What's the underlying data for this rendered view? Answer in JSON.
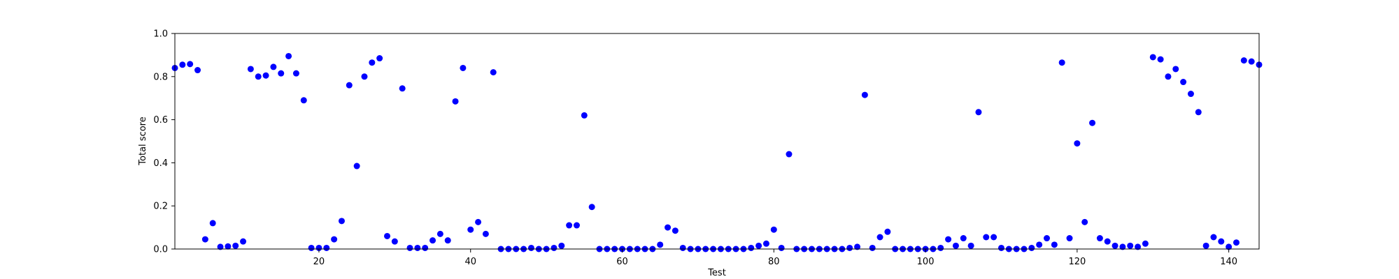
{
  "chart_data": {
    "type": "scatter",
    "title": "",
    "xlabel": "Test",
    "ylabel": "Total score",
    "xlim": [
      1,
      144
    ],
    "ylim": [
      0.0,
      1.0
    ],
    "grid": false,
    "marker_color": "#0000ff",
    "axis_color": "#000000",
    "xticks": [
      20,
      40,
      60,
      80,
      100,
      120,
      140
    ],
    "yticks": [
      "0.0",
      "0.2",
      "0.4",
      "0.6",
      "0.8",
      "1.0"
    ],
    "series": [
      {
        "x": [
          1,
          2,
          3,
          4,
          5,
          6,
          7,
          8,
          9,
          10,
          11,
          12,
          13,
          14,
          15,
          16,
          17,
          18,
          19,
          20,
          21,
          22,
          23,
          24,
          25,
          26,
          27,
          28,
          29,
          30,
          31,
          32,
          33,
          34,
          35,
          36,
          37,
          38,
          39,
          40,
          41,
          42,
          43,
          44,
          45,
          46,
          47,
          48,
          49,
          50,
          51,
          52,
          53,
          54,
          55,
          56,
          57,
          58,
          59,
          60,
          61,
          62,
          63,
          64,
          65,
          66,
          67,
          68,
          69,
          70,
          71,
          72,
          73,
          74,
          75,
          76,
          77,
          78,
          79,
          80,
          81,
          82,
          83,
          84,
          85,
          86,
          87,
          88,
          89,
          90,
          91,
          92,
          93,
          94,
          95,
          96,
          97,
          98,
          99,
          100,
          101,
          102,
          103,
          104,
          105,
          106,
          107,
          108,
          109,
          110,
          111,
          112,
          113,
          114,
          115,
          116,
          117,
          118,
          119,
          120,
          121,
          122,
          123,
          124,
          125,
          126,
          127,
          128,
          129,
          130,
          131,
          132,
          133,
          134,
          135,
          136,
          137,
          138,
          139,
          140,
          141,
          142,
          143,
          144
        ],
        "y": [
          0.84,
          0.855,
          0.858,
          0.83,
          0.045,
          0.12,
          0.01,
          0.012,
          0.015,
          0.035,
          0.835,
          0.8,
          0.805,
          0.845,
          0.815,
          0.895,
          0.815,
          0.69,
          0.005,
          0.005,
          0.005,
          0.045,
          0.13,
          0.76,
          0.385,
          0.8,
          0.865,
          0.885,
          0.06,
          0.035,
          0.745,
          0.005,
          0.005,
          0.005,
          0.04,
          0.07,
          0.04,
          0.685,
          0.84,
          0.09,
          0.125,
          0.07,
          0.82,
          0.0,
          0.0,
          0.0,
          0.0,
          0.005,
          0.0,
          0.0,
          0.005,
          0.015,
          0.11,
          0.11,
          0.62,
          0.195,
          0.0,
          0.0,
          0.0,
          0.0,
          0.0,
          0.0,
          0.0,
          0.0,
          0.02,
          0.1,
          0.085,
          0.005,
          0.0,
          0.0,
          0.0,
          0.0,
          0.0,
          0.0,
          0.0,
          0.0,
          0.005,
          0.015,
          0.025,
          0.09,
          0.005,
          0.44,
          0.0,
          0.0,
          0.0,
          0.0,
          0.0,
          0.0,
          0.0,
          0.005,
          0.01,
          0.715,
          0.005,
          0.055,
          0.08,
          0.0,
          0.0,
          0.0,
          0.0,
          0.0,
          0.0,
          0.005,
          0.045,
          0.015,
          0.05,
          0.015,
          0.635,
          0.055,
          0.055,
          0.005,
          0.0,
          0.0,
          0.0,
          0.005,
          0.02,
          0.05,
          0.02,
          0.865,
          0.05,
          0.49,
          0.125,
          0.585,
          0.05,
          0.035,
          0.015,
          0.01,
          0.015,
          0.01,
          0.025,
          0.89,
          0.88,
          0.8,
          0.835,
          0.775,
          0.72,
          0.635,
          0.015,
          0.055,
          0.035,
          0.01,
          0.03,
          0.875,
          0.87,
          0.855
        ]
      }
    ]
  }
}
